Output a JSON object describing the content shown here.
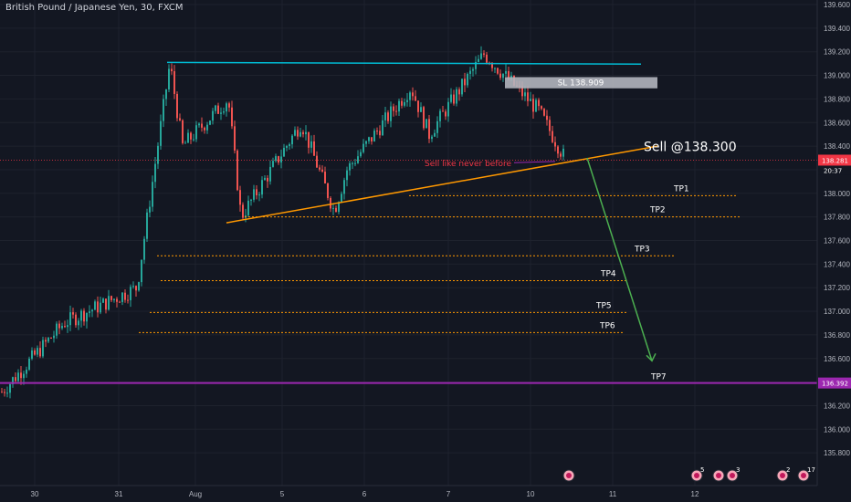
{
  "header": {
    "title": "British Pound / Japanese Yen, 30, FXCM"
  },
  "colors": {
    "background": "#131722",
    "grid": "#1e222d",
    "bull": "#26a69a",
    "bear": "#ef5350",
    "resistance": "#00bcd4",
    "support": "#ff9800",
    "tp_lines": "#ff9800",
    "level_line": "#9c27b0",
    "price_line": "#f23645",
    "arrow": "#4caf50",
    "sl_box": "#b2b5be"
  },
  "annotations": {
    "sell_label": "Sell  @138.300",
    "sl_label": "SL 138.909",
    "note": "Sell like never before"
  },
  "chart_data": {
    "type": "candlestick",
    "title": "British Pound / Japanese Yen, 30, FXCM",
    "y_axis": {
      "range": [
        135.74,
        139.65
      ],
      "ticks": [
        "139.600",
        "139.400",
        "139.200",
        "139.000",
        "138.800",
        "138.600",
        "138.400",
        "138.200",
        "138.000",
        "137.800",
        "137.600",
        "137.400",
        "137.200",
        "137.000",
        "136.800",
        "136.600",
        "136.400",
        "136.200",
        "136.000",
        "135.800"
      ]
    },
    "x_axis": {
      "ticks": [
        "30",
        "31",
        "Aug",
        "5",
        "6",
        "7",
        "10",
        "11",
        "12"
      ]
    },
    "price_labels": [
      {
        "value": "138.281",
        "price": 138.281,
        "color": "#f23645"
      },
      {
        "value": "20:37",
        "kind": "countdown"
      },
      {
        "value": "136.392",
        "price": 136.392,
        "color": "#9c27b0"
      }
    ],
    "series_path": [
      {
        "date": "30",
        "price": 136.3
      },
      {
        "date": "31",
        "price": 136.9
      },
      {
        "date": "31",
        "price": 137.2
      },
      {
        "date": "Aug",
        "price": 139.1
      },
      {
        "date": "Aug",
        "price": 138.4
      },
      {
        "date": "Aug",
        "price": 138.8
      },
      {
        "date": "Aug",
        "price": 137.8
      },
      {
        "date": "5",
        "price": 138.6
      },
      {
        "date": "5",
        "price": 137.85
      },
      {
        "date": "5",
        "price": 138.2
      },
      {
        "date": "6",
        "price": 138.9
      },
      {
        "date": "6",
        "price": 138.5
      },
      {
        "date": "6",
        "price": 139.18
      },
      {
        "date": "7",
        "price": 138.7
      },
      {
        "date": "7",
        "price": 138.28
      }
    ],
    "resistance_line": {
      "price": 139.11
    },
    "support_trendline": {
      "from_price": 137.75,
      "to_price": 138.39
    },
    "take_profits": [
      {
        "label": "TP1",
        "price": 137.98
      },
      {
        "label": "TP2",
        "price": 137.8
      },
      {
        "label": "TP3",
        "price": 137.47
      },
      {
        "label": "TP4",
        "price": 137.26
      },
      {
        "label": "TP5",
        "price": 136.99
      },
      {
        "label": "TP6",
        "price": 136.82
      },
      {
        "label": "TP7",
        "price": 136.392
      }
    ],
    "entry": 138.3,
    "stop_loss": 138.909,
    "event_badges": [
      {
        "count": "",
        "kind": "event"
      },
      {
        "count": "5",
        "kind": "event"
      },
      {
        "count": "",
        "kind": "event"
      },
      {
        "count": "3",
        "kind": "event"
      },
      {
        "count": "2",
        "kind": "event"
      },
      {
        "count": "17",
        "kind": "event"
      }
    ]
  }
}
